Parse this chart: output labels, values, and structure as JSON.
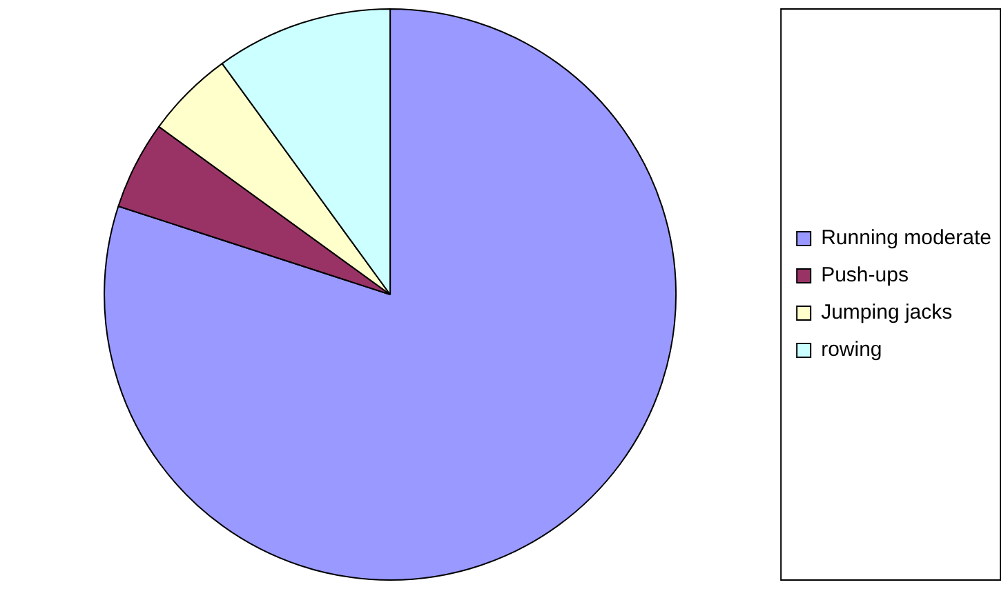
{
  "chart_data": {
    "type": "pie",
    "categories": [
      "Running moderate",
      "Push-ups",
      "Jumping jacks",
      "rowing"
    ],
    "values": [
      80,
      5,
      5,
      10
    ],
    "colors": [
      "#9999ff",
      "#993366",
      "#ffffcc",
      "#ccffff"
    ],
    "legend": "right"
  }
}
